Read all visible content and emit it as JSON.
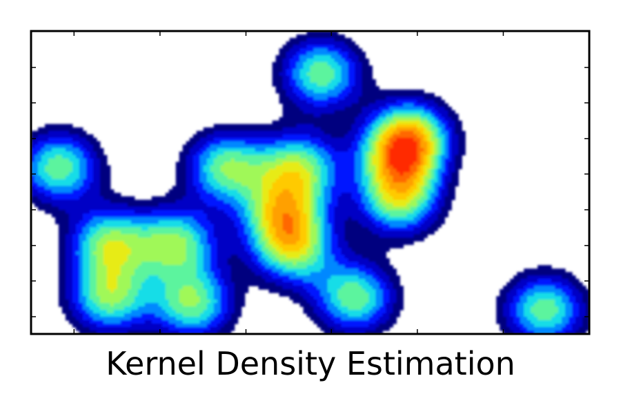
{
  "chart_data": {
    "type": "heatmap",
    "title": "",
    "xlabel": "Kernel Density Estimation",
    "ylabel": "",
    "colormap": "jet",
    "colormap_stops": [
      "#00007f",
      "#0000ff",
      "#00d5ff",
      "#7dff7a",
      "#ffe600",
      "#ff9900",
      "#ff2a00"
    ],
    "xlim": [
      0,
      1
    ],
    "ylim": [
      0,
      1
    ],
    "xticks": [
      0.077,
      0.231,
      0.385,
      0.538,
      0.692,
      0.846
    ],
    "yticks": [
      0.057,
      0.175,
      0.292,
      0.41,
      0.528,
      0.645,
      0.763,
      0.88
    ],
    "tick_labels_shown": false,
    "grid": false,
    "contour_levels": [
      0.13,
      0.2,
      0.27,
      0.34,
      0.41,
      0.48,
      0.55,
      0.62,
      0.69,
      0.76,
      0.83,
      0.9
    ],
    "points": [
      [
        0.05,
        0.55
      ],
      [
        0.14,
        0.3
      ],
      [
        0.26,
        0.3
      ],
      [
        0.14,
        0.12
      ],
      [
        0.29,
        0.1
      ],
      [
        0.35,
        0.55
      ],
      [
        0.48,
        0.55
      ],
      [
        0.47,
        0.28
      ],
      [
        0.58,
        0.12
      ],
      [
        0.66,
        0.58
      ],
      [
        0.66,
        0.44
      ],
      [
        0.52,
        0.86
      ],
      [
        0.68,
        0.66
      ],
      [
        0.92,
        0.08
      ],
      [
        0.45,
        0.4
      ]
    ]
  }
}
